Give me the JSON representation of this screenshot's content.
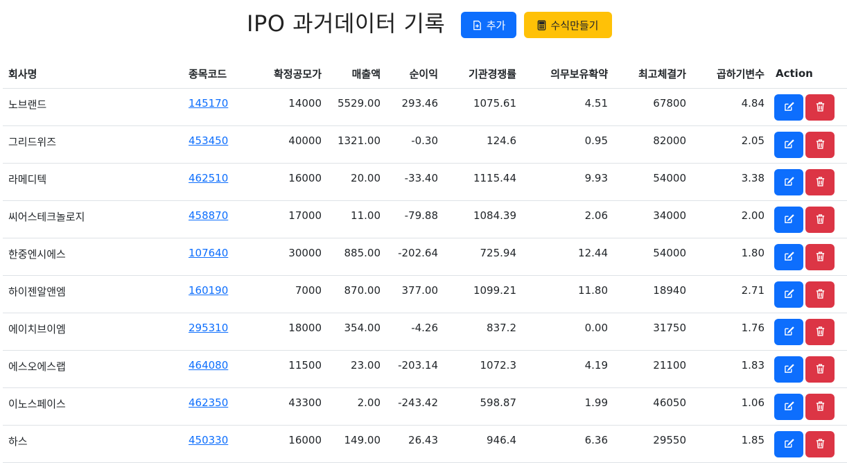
{
  "header": {
    "title": "IPO 과거데이터 기록",
    "add_label": "추가",
    "formula_label": "수식만들기"
  },
  "table": {
    "columns": [
      "회사명",
      "종목코드",
      "확정공모가",
      "매출액",
      "순이익",
      "기관경쟁률",
      "의무보유확약",
      "최고체결가",
      "곱하기변수",
      "Action"
    ],
    "rows": [
      {
        "name": "노브랜드",
        "code": "145170",
        "price": "14000",
        "sales": "5529.00",
        "profit": "293.46",
        "competition": "1075.61",
        "lockup": "4.51",
        "max_price": "67800",
        "multiplier": "4.84"
      },
      {
        "name": "그리드위즈",
        "code": "453450",
        "price": "40000",
        "sales": "1321.00",
        "profit": "-0.30",
        "competition": "124.6",
        "lockup": "0.95",
        "max_price": "82000",
        "multiplier": "2.05"
      },
      {
        "name": "라메디텍",
        "code": "462510",
        "price": "16000",
        "sales": "20.00",
        "profit": "-33.40",
        "competition": "1115.44",
        "lockup": "9.93",
        "max_price": "54000",
        "multiplier": "3.38"
      },
      {
        "name": "씨어스테크놀로지",
        "code": "458870",
        "price": "17000",
        "sales": "11.00",
        "profit": "-79.88",
        "competition": "1084.39",
        "lockup": "2.06",
        "max_price": "34000",
        "multiplier": "2.00"
      },
      {
        "name": "한중엔시에스",
        "code": "107640",
        "price": "30000",
        "sales": "885.00",
        "profit": "-202.64",
        "competition": "725.94",
        "lockup": "12.44",
        "max_price": "54000",
        "multiplier": "1.80"
      },
      {
        "name": "하이젠알앤엠",
        "code": "160190",
        "price": "7000",
        "sales": "870.00",
        "profit": "377.00",
        "competition": "1099.21",
        "lockup": "11.80",
        "max_price": "18940",
        "multiplier": "2.71"
      },
      {
        "name": "에이치브이엠",
        "code": "295310",
        "price": "18000",
        "sales": "354.00",
        "profit": "-4.26",
        "competition": "837.2",
        "lockup": "0.00",
        "max_price": "31750",
        "multiplier": "1.76"
      },
      {
        "name": "에스오에스랩",
        "code": "464080",
        "price": "11500",
        "sales": "23.00",
        "profit": "-203.14",
        "competition": "1072.3",
        "lockup": "4.19",
        "max_price": "21100",
        "multiplier": "1.83"
      },
      {
        "name": "이노스페이스",
        "code": "462350",
        "price": "43300",
        "sales": "2.00",
        "profit": "-243.42",
        "competition": "598.87",
        "lockup": "1.99",
        "max_price": "46050",
        "multiplier": "1.06"
      },
      {
        "name": "하스",
        "code": "450330",
        "price": "16000",
        "sales": "149.00",
        "profit": "26.43",
        "competition": "946.4",
        "lockup": "6.36",
        "max_price": "29550",
        "multiplier": "1.85"
      }
    ]
  },
  "icons": {
    "add": "file-plus-icon",
    "formula": "calculator-icon",
    "edit": "pencil-square-icon",
    "delete": "trash-icon"
  },
  "colors": {
    "primary": "#0d6efd",
    "warning": "#ffc107",
    "danger": "#dc3545"
  }
}
